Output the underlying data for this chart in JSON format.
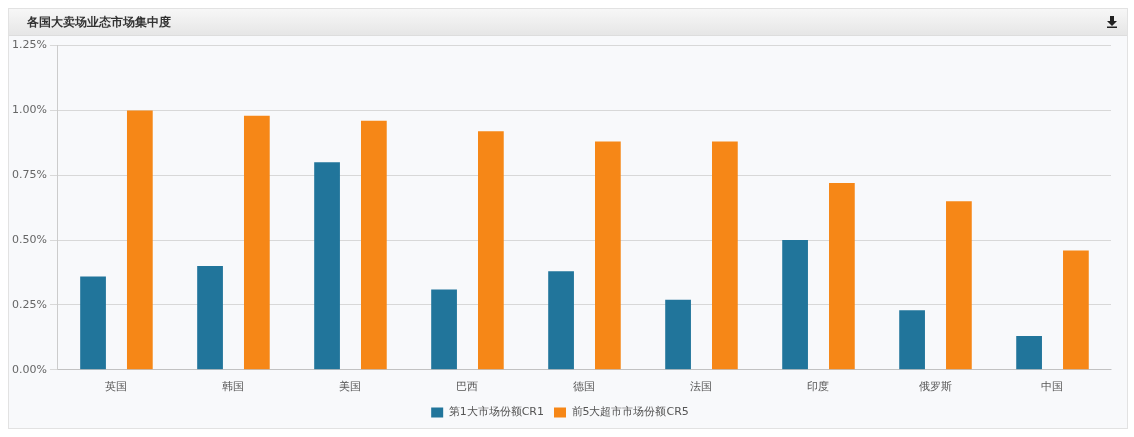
{
  "chart_data": {
    "type": "bar",
    "title": "各国大卖场业态市场集中度",
    "categories": [
      "英国",
      "韩国",
      "美国",
      "巴西",
      "德国",
      "法国",
      "印度",
      "俄罗斯",
      "中国"
    ],
    "series": [
      {
        "name": "第1大市场份额CR1",
        "color": "#21759b",
        "values": [
          0.36,
          0.4,
          0.8,
          0.31,
          0.38,
          0.27,
          0.5,
          0.23,
          0.13
        ]
      },
      {
        "name": "前5大超市市场份额CR5",
        "color": "#f68717",
        "values": [
          1.0,
          0.98,
          0.96,
          0.92,
          0.88,
          0.88,
          0.72,
          0.65,
          0.46
        ]
      }
    ],
    "ylim": [
      0,
      1.25
    ],
    "yticks": [
      {
        "value": 0,
        "label": "0.00%"
      },
      {
        "value": 0.25,
        "label": "0.25%"
      },
      {
        "value": 0.5,
        "label": "0.50%"
      },
      {
        "value": 0.75,
        "label": "0.75%"
      },
      {
        "value": 1,
        "label": "1.00%"
      },
      {
        "value": 1.25,
        "label": "1.25%"
      }
    ],
    "grid": "y",
    "legend": "bottom"
  }
}
